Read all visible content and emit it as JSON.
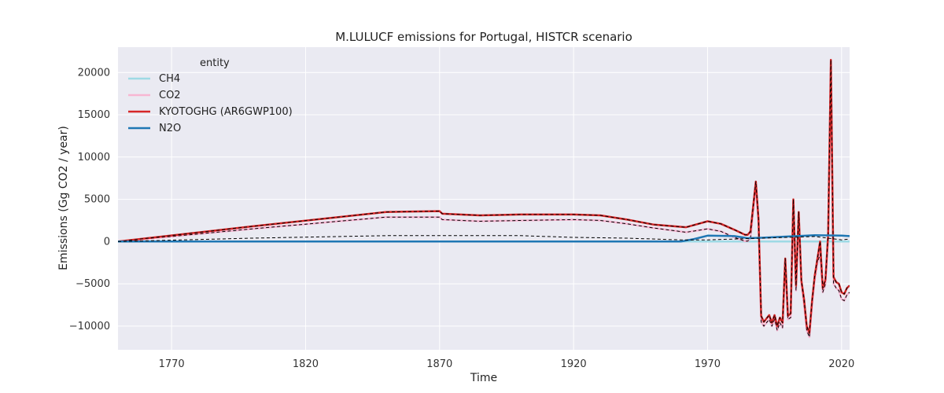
{
  "chart_data": {
    "type": "line",
    "title": "M.LULUCF emissions for Portugal, HISTCR scenario",
    "xlabel": "Time",
    "ylabel": "Emissions (Gg CO2 / year)",
    "xlim": [
      1750,
      2023
    ],
    "ylim": [
      -12800,
      23000
    ],
    "xticks": [
      1770,
      1820,
      1870,
      1920,
      1970,
      2020
    ],
    "yticks": [
      -10000,
      -5000,
      0,
      5000,
      10000,
      15000,
      20000
    ],
    "grid": true,
    "legend": {
      "title": "entity",
      "placement": "top-left",
      "entries": [
        "CH4",
        "CO2",
        "KYOTOGHG (AR6GWP100)",
        "N2O"
      ]
    },
    "colors": {
      "background": "#eaeaf2",
      "grid": "#ffffff",
      "CH4": "#9edae5",
      "CO2": "#f7b6d2",
      "KYOTOGHG": "#d62728",
      "N2O": "#1f77b4",
      "reference": "#000000"
    },
    "series": [
      {
        "name": "CH4",
        "color": "#9edae5",
        "x": [
          1750,
          1960,
          1970,
          2023
        ],
        "y": [
          0,
          0,
          0,
          0
        ]
      },
      {
        "name": "CO2",
        "color": "#f7b6d2",
        "x": [
          1750,
          1800,
          1850,
          1870,
          1871,
          1885,
          1900,
          1920,
          1930,
          1940,
          1950,
          1962,
          1970,
          1975,
          1980,
          1984,
          1985,
          1986,
          1988,
          1989,
          1990,
          1991,
          1993,
          1994,
          1995,
          1996,
          1997,
          1998,
          1999,
          2000,
          2001,
          2002,
          2003,
          2004,
          2005,
          2006,
          2007,
          2008,
          2009,
          2010,
          2011,
          2012,
          2013,
          2014,
          2015,
          2016,
          2017,
          2018,
          2019,
          2020,
          2021,
          2022,
          2023
        ],
        "y": [
          0,
          1500,
          2900,
          2900,
          2600,
          2400,
          2500,
          2600,
          2500,
          2100,
          1600,
          1100,
          1500,
          1200,
          500,
          50,
          50,
          400,
          6600,
          2000,
          -9500,
          -10000,
          -9200,
          -10000,
          -9200,
          -10500,
          -9600,
          -10200,
          -2300,
          -9200,
          -9000,
          4700,
          -5800,
          3200,
          -5000,
          -7500,
          -10500,
          -11300,
          -7500,
          -4500,
          -2500,
          -1500,
          -6000,
          -5000,
          300,
          20700,
          -5000,
          -5500,
          -5800,
          -6800,
          -7000,
          -6300,
          -6000
        ]
      },
      {
        "name": "KYOTOGHG (AR6GWP100)",
        "color": "#d62728",
        "x": [
          1750,
          1800,
          1850,
          1870,
          1871,
          1885,
          1900,
          1920,
          1930,
          1940,
          1950,
          1962,
          1970,
          1975,
          1980,
          1984,
          1985,
          1986,
          1988,
          1989,
          1990,
          1991,
          1993,
          1994,
          1995,
          1996,
          1997,
          1998,
          1999,
          2000,
          2001,
          2002,
          2003,
          2004,
          2005,
          2006,
          2007,
          2008,
          2009,
          2010,
          2011,
          2012,
          2013,
          2014,
          2015,
          2016,
          2017,
          2018,
          2019,
          2020,
          2021,
          2022,
          2023
        ],
        "y": [
          0,
          1800,
          3500,
          3600,
          3300,
          3100,
          3200,
          3200,
          3100,
          2600,
          2000,
          1700,
          2400,
          2100,
          1400,
          800,
          800,
          1200,
          7100,
          2700,
          -8800,
          -9500,
          -8700,
          -9600,
          -8700,
          -10000,
          -9000,
          -9600,
          -2000,
          -8800,
          -8500,
          5000,
          -5200,
          3500,
          -4600,
          -6800,
          -10000,
          -10800,
          -7000,
          -4000,
          -2000,
          0,
          -5500,
          -4500,
          800,
          21500,
          -4200,
          -4800,
          -5000,
          -6000,
          -6200,
          -5500,
          -5200
        ]
      },
      {
        "name": "N2O",
        "color": "#1f77b4",
        "x": [
          1750,
          1960,
          1965,
          1970,
          1980,
          1985,
          1990,
          2000,
          2010,
          2020,
          2023
        ],
        "y": [
          0,
          0,
          300,
          700,
          650,
          400,
          450,
          600,
          750,
          700,
          650
        ]
      },
      {
        "name": "reference",
        "color": "#000000",
        "dashed": true,
        "x": [
          1750,
          1800,
          1850,
          1900,
          1920,
          1940,
          1960,
          1970,
          1990,
          2000,
          2010,
          2020,
          2023
        ],
        "y": [
          0,
          400,
          700,
          700,
          500,
          400,
          200,
          200,
          400,
          500,
          600,
          200,
          300
        ]
      }
    ]
  }
}
